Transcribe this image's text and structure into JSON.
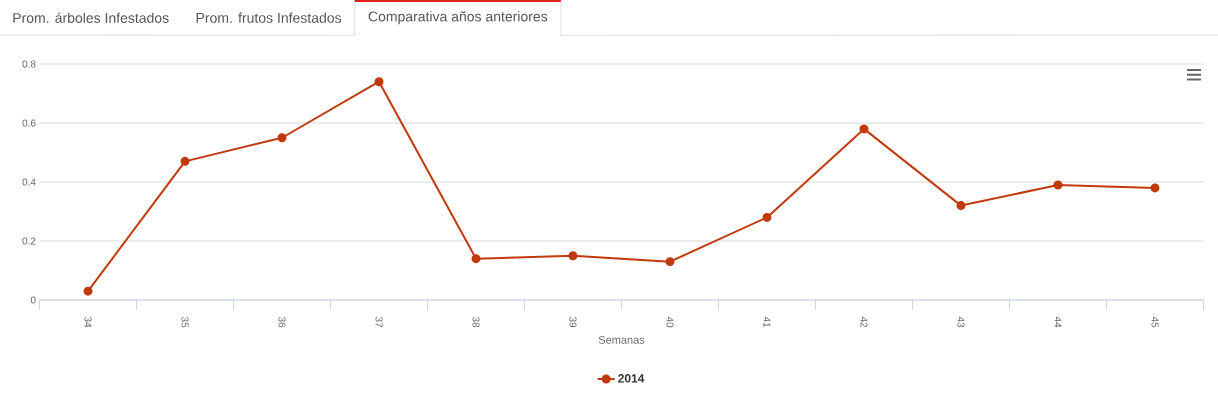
{
  "chart_data": {
    "type": "line",
    "xlabel": "Semanas",
    "annotations": [
      "Prom. árboles Infestados",
      "Prom. frutos Infestados",
      "Comparativa años anteriores"
    ],
    "categories": [
      "34",
      "35",
      "36",
      "37",
      "38",
      "39",
      "40",
      "41",
      "42",
      "43",
      "44",
      "45"
    ],
    "series": [
      {
        "name": "2014",
        "color": "#c03a0c",
        "values": [
          0.03,
          0.47,
          0.55,
          0.74,
          0.14,
          0.15,
          0.13,
          0.28,
          0.58,
          0.32,
          0.39,
          0.38
        ]
      }
    ],
    "ylim": [
      0,
      0.8
    ],
    "yticks": [
      0,
      0.2,
      0.4,
      0.6,
      0.8
    ],
    "grid": "y",
    "legend": "bottom",
    "marker": "circle",
    "line_style": "solid"
  }
}
